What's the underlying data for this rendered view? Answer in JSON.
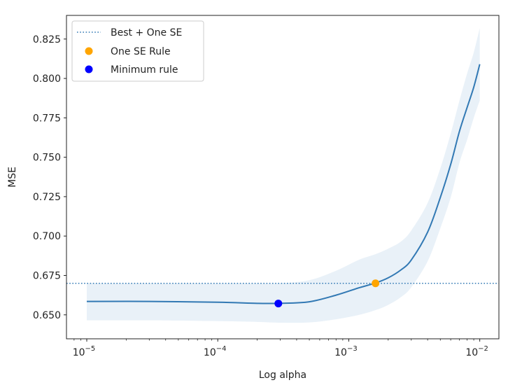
{
  "chart_data": {
    "type": "line",
    "title": "",
    "xlabel": "Log alpha",
    "ylabel": "MSE",
    "xscale": "log",
    "xlim": [
      7e-06,
      0.014
    ],
    "ylim": [
      0.6348,
      0.84
    ],
    "x_ticks": [
      {
        "value": 1e-05,
        "base": "10",
        "exp": "−5"
      },
      {
        "value": 0.0001,
        "base": "10",
        "exp": "−4"
      },
      {
        "value": 0.001,
        "base": "10",
        "exp": "−3"
      },
      {
        "value": 0.01,
        "base": "10",
        "exp": "−2"
      }
    ],
    "y_ticks": [
      "0.650",
      "0.675",
      "0.700",
      "0.725",
      "0.750",
      "0.775",
      "0.800",
      "0.825"
    ],
    "grid": false,
    "series": [
      {
        "name": "MSE",
        "color": "#3279b4",
        "x": [
          1e-05,
          3e-05,
          0.0001,
          0.0002,
          0.0003,
          0.0005,
          0.0008,
          0.0012,
          0.0016,
          0.002,
          0.0025,
          0.003,
          0.004,
          0.005,
          0.006,
          0.007,
          0.008,
          0.009,
          0.01
        ],
        "y": [
          0.6585,
          0.6585,
          0.658,
          0.6573,
          0.6573,
          0.6583,
          0.6625,
          0.6672,
          0.6702,
          0.6735,
          0.6785,
          0.6848,
          0.7025,
          0.7245,
          0.7455,
          0.7665,
          0.7815,
          0.7945,
          0.809
        ],
        "band_lower": [
          0.6465,
          0.6465,
          0.646,
          0.6455,
          0.645,
          0.6452,
          0.6472,
          0.65,
          0.653,
          0.6563,
          0.6612,
          0.6675,
          0.684,
          0.705,
          0.7245,
          0.7465,
          0.761,
          0.775,
          0.786
        ],
        "band_upper": [
          0.67,
          0.67,
          0.67,
          0.67,
          0.67,
          0.672,
          0.678,
          0.685,
          0.6885,
          0.692,
          0.6965,
          0.7035,
          0.721,
          0.743,
          0.765,
          0.786,
          0.803,
          0.8165,
          0.832
        ],
        "band_color": "#e9f1f8"
      }
    ],
    "hlines": [
      {
        "name": "Best + One SE",
        "y": 0.67,
        "style": "dotted",
        "color": "#3279b4"
      }
    ],
    "points": [
      {
        "name": "One SE Rule",
        "x": 0.0016,
        "y": 0.67,
        "color": "#ffa500"
      },
      {
        "name": "Minimum rule",
        "x": 0.00029,
        "y": 0.6572,
        "color": "#0000ff"
      }
    ],
    "legend": {
      "position": "upper-left",
      "entries": [
        {
          "label": "Best + One SE",
          "kind": "dotted-line",
          "color": "#3279b4"
        },
        {
          "label": "One SE Rule",
          "kind": "marker",
          "color": "#ffa500"
        },
        {
          "label": "Minimum rule",
          "kind": "marker",
          "color": "#0000ff"
        }
      ]
    }
  }
}
